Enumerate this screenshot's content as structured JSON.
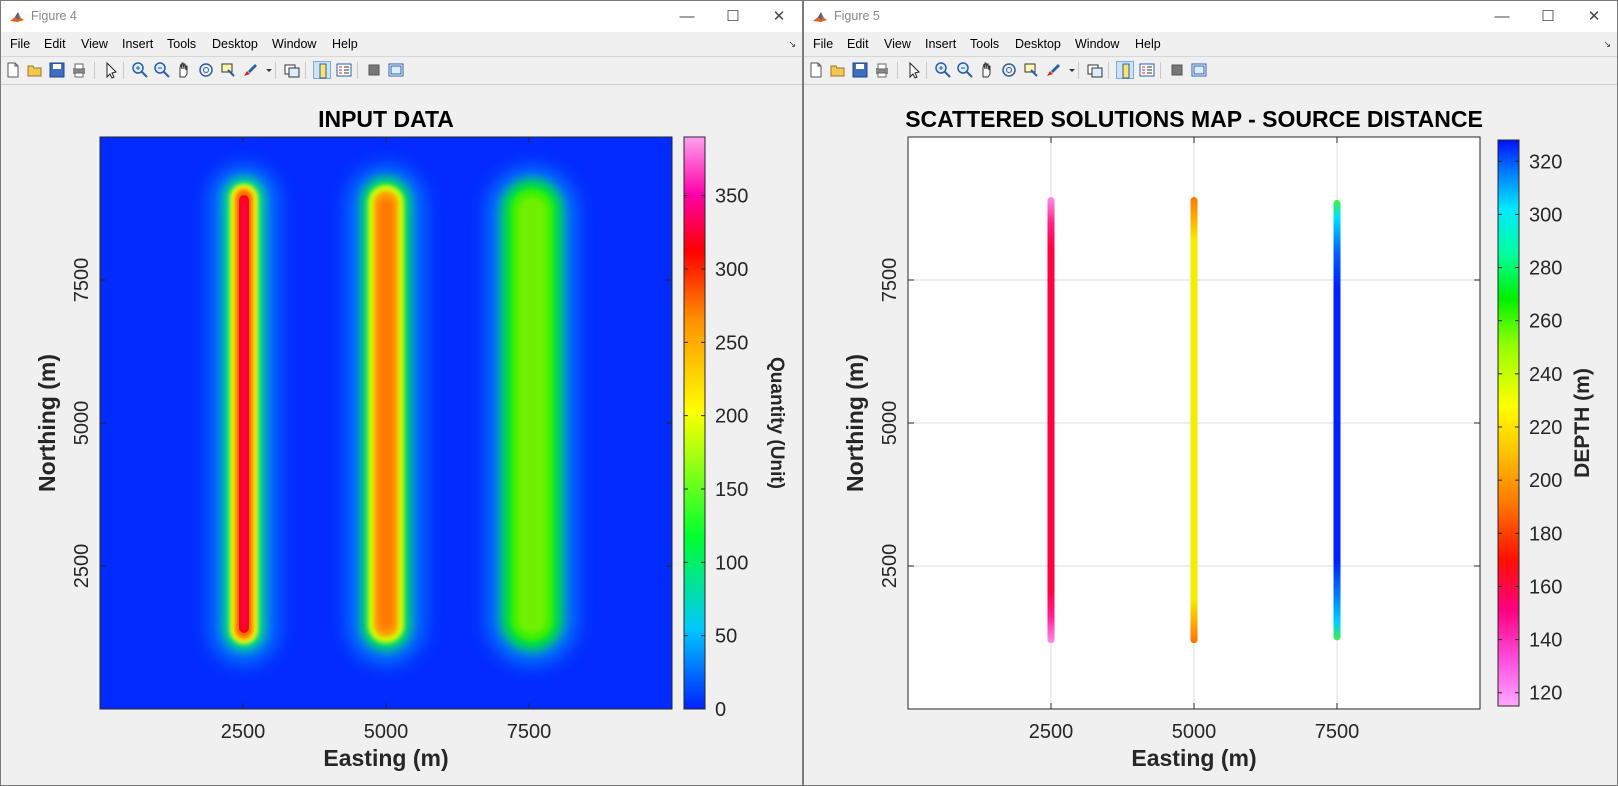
{
  "windows": [
    {
      "title": "Figure 4",
      "menus": [
        "File",
        "Edit",
        "View",
        "Insert",
        "Tools",
        "Desktop",
        "Window",
        "Help"
      ],
      "toolbar_icons": [
        "new-figure-icon",
        "open-file-icon",
        "save-icon",
        "print-icon",
        "pointer-icon",
        "zoom-in-icon",
        "zoom-out-icon",
        "pan-icon",
        "rotate-3d-icon",
        "data-cursor-icon",
        "brush-icon",
        "brush-dropdown-icon",
        "link-plot-icon",
        "colorbar-icon",
        "legend-icon",
        "hide-plot-tools-icon",
        "show-plot-tools-icon"
      ],
      "plot": {
        "title": "INPUT DATA",
        "xlabel": "Easting (m)",
        "ylabel": "Northing (m)",
        "colorbar_label": "Quantity (Unit)"
      }
    },
    {
      "title": "Figure 5",
      "menus": [
        "File",
        "Edit",
        "View",
        "Insert",
        "Tools",
        "Desktop",
        "Window",
        "Help"
      ],
      "toolbar_icons": [
        "new-figure-icon",
        "open-file-icon",
        "save-icon",
        "print-icon",
        "pointer-icon",
        "zoom-in-icon",
        "zoom-out-icon",
        "pan-icon",
        "rotate-3d-icon",
        "data-cursor-icon",
        "brush-icon",
        "brush-dropdown-icon",
        "link-plot-icon",
        "colorbar-icon",
        "legend-icon",
        "hide-plot-tools-icon",
        "show-plot-tools-icon"
      ],
      "plot": {
        "title": "SCATTERED SOLUTIONS MAP - SOURCE DISTANCE",
        "xlabel": "Easting (m)",
        "ylabel": "Northing (m)",
        "colorbar_label": "DEPTH (m)"
      }
    }
  ],
  "chart_data": [
    {
      "type": "heatmap",
      "title": "INPUT DATA",
      "xlabel": "Easting (m)",
      "ylabel": "Northing (m)",
      "xlim": [
        0,
        10000
      ],
      "ylim": [
        0,
        10000
      ],
      "xticks": [
        "2500",
        "5000",
        "7500"
      ],
      "yticks": [
        "2500",
        "5000",
        "7500"
      ],
      "colorbar": {
        "label": "Quantity (Unit)",
        "range": [
          0,
          390
        ],
        "ticks": [
          "0",
          "50",
          "100",
          "150",
          "200",
          "250",
          "300",
          "350"
        ],
        "colormap": "hsv-like (blue to magenta)"
      },
      "grid": false,
      "anomalies": [
        {
          "x": 2500,
          "y_range": [
            1000,
            9000
          ],
          "peak_value": 330
        },
        {
          "x": 5000,
          "y_range": [
            1000,
            9000
          ],
          "peak_value": 250
        },
        {
          "x": 7500,
          "y_range": [
            1000,
            9000
          ],
          "peak_value": 160
        }
      ],
      "background_value": 10
    },
    {
      "type": "scatter",
      "title": "SCATTERED SOLUTIONS MAP - SOURCE DISTANCE",
      "xlabel": "Easting (m)",
      "ylabel": "Northing (m)",
      "xlim": [
        0,
        10000
      ],
      "ylim": [
        0,
        10000
      ],
      "xticks": [
        "2500",
        "5000",
        "7500"
      ],
      "yticks": [
        "2500",
        "5000",
        "7500"
      ],
      "grid": true,
      "colorbar": {
        "label": "DEPTH (m)",
        "range": [
          115,
          328
        ],
        "ticks": [
          "120",
          "140",
          "160",
          "180",
          "200",
          "220",
          "240",
          "260",
          "280",
          "300",
          "320"
        ]
      },
      "series": [
        {
          "x": 2500,
          "y_range": [
            1150,
            8950
          ],
          "depth_main": 160,
          "depth_ends": 130
        },
        {
          "x": 5000,
          "y_range": [
            1150,
            8950
          ],
          "depth_main": 225,
          "depth_ends": 190
        },
        {
          "x": 7500,
          "y_range": [
            1200,
            8900
          ],
          "depth_main": 318,
          "depth_ends": 270
        }
      ]
    }
  ],
  "colors": {
    "heat_bg": "#0022ff",
    "accent_title_icon": "#e06020"
  }
}
